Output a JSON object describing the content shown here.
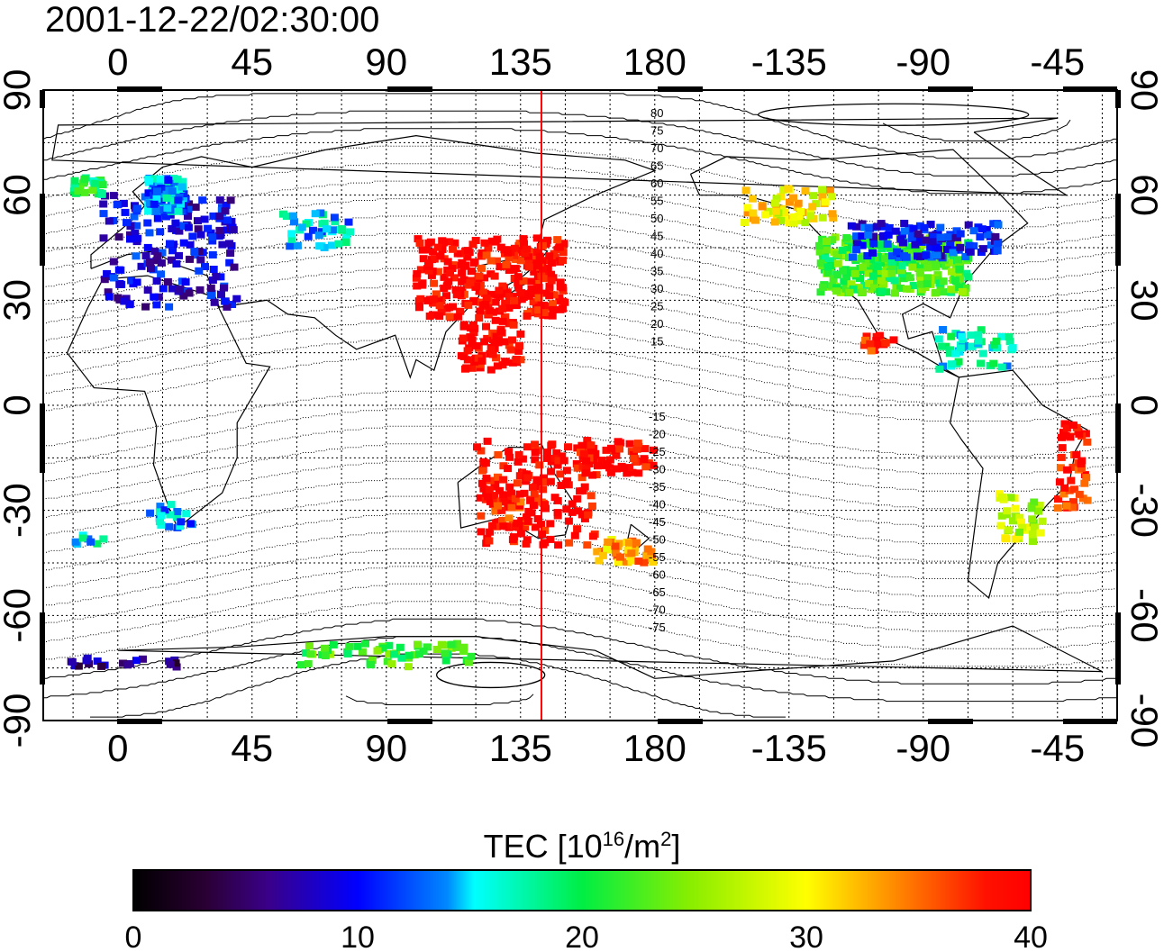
{
  "timestamp": "2001-12-22/02:30:00",
  "colorbar": {
    "title_prefix": "TEC  [10",
    "title_exp": "16",
    "title_mid": "/m",
    "title_exp2": "2",
    "title_suffix": "]",
    "min": 0,
    "max": 40,
    "ticks": [
      "0",
      "10",
      "20",
      "30",
      "40"
    ],
    "colormap": "jet-like (black-purple-blue-cyan-green-yellow-red)"
  },
  "map": {
    "projection": "cylindrical equidistant",
    "lon_ticks": [
      "0",
      "45",
      "90",
      "135",
      "180",
      "-135",
      "-90",
      "-45"
    ],
    "lat_ticks": [
      "90",
      "60",
      "30",
      "0",
      "-30",
      "-60",
      "-90"
    ],
    "lon_range": [
      -25,
      335
    ],
    "lat_range": [
      -90,
      90
    ],
    "grid": "dotted every 15 degrees",
    "meridian_line": {
      "lon": 142,
      "color": "#ff0000"
    },
    "magnetic_lat_contours": {
      "north_labels": [
        "80",
        "75",
        "70",
        "65",
        "60",
        "55",
        "50",
        "45",
        "40",
        "35",
        "30",
        "25",
        "20",
        "15"
      ],
      "south_labels": [
        "-15",
        "-20",
        "-25",
        "-30",
        "-35",
        "-40",
        "-45",
        "-50",
        "-55",
        "-60",
        "-65",
        "-70",
        "-75"
      ]
    }
  }
}
